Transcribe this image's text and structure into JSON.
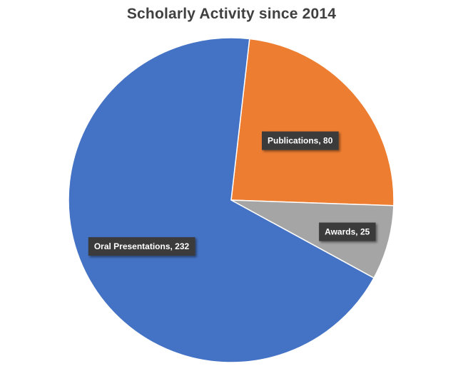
{
  "chart_data": {
    "type": "pie",
    "title": "Scholarly Activity since 2014",
    "slices": [
      {
        "label": "Publications",
        "value": 80,
        "color": "#ED7D31",
        "data_label": "Publications, 80"
      },
      {
        "label": "Awards",
        "value": 25,
        "color": "#A5A5A5",
        "data_label": "Awards, 25"
      },
      {
        "label": "Oral Presentations",
        "value": 232,
        "color": "#4472C4",
        "data_label": "Oral Presentations, 232"
      }
    ],
    "start_angle_deg": 6.5,
    "direction": "clockwise",
    "label_box_color": "#3A3A3A",
    "legend": "none"
  }
}
